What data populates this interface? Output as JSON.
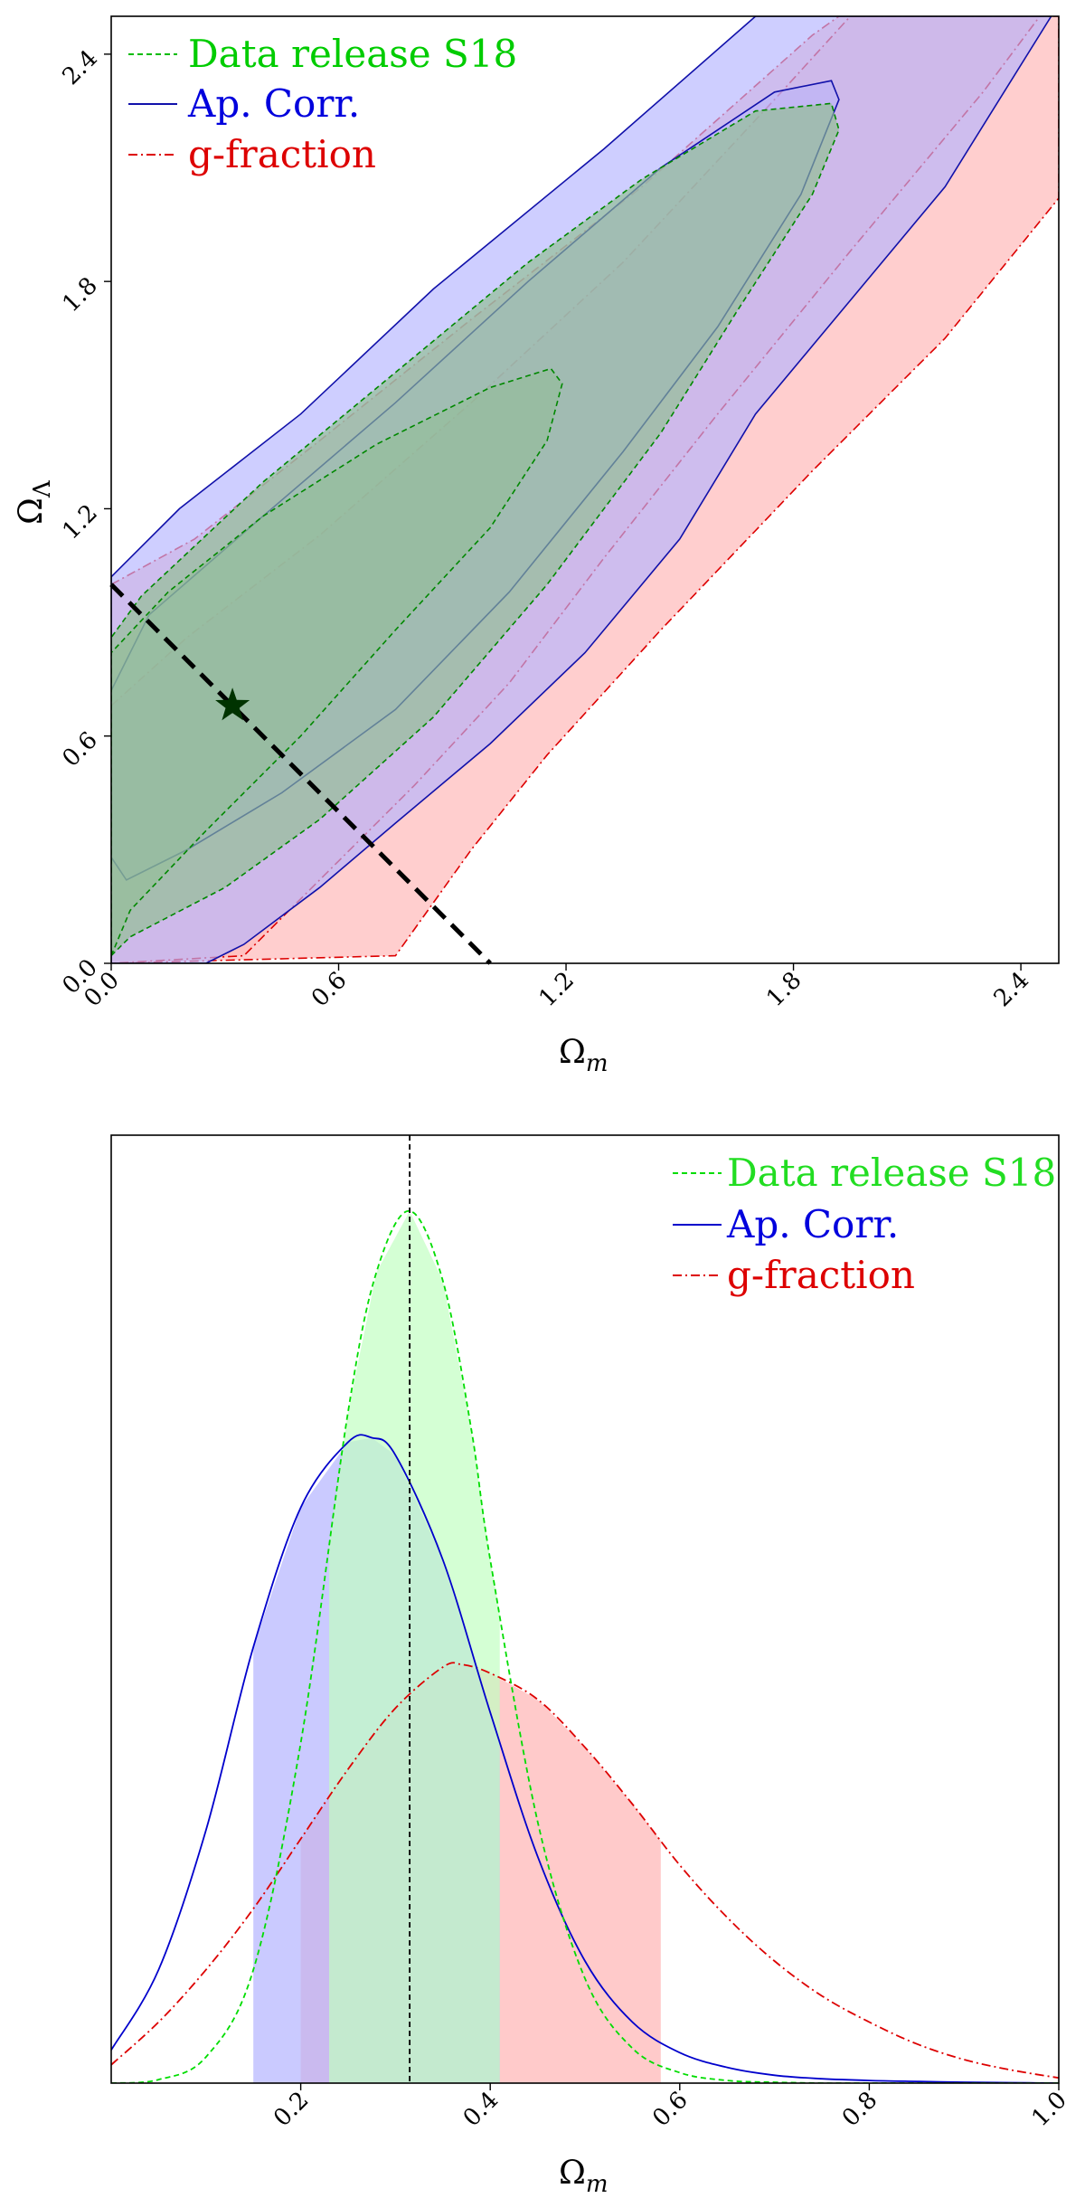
{
  "figure": "stacked cosmology constraint figure",
  "chart_data": [
    {
      "type": "contour",
      "xlabel_main": "Ω",
      "xlabel_sub": "m",
      "ylabel_main": "Ω",
      "ylabel_sub": "Λ",
      "xlim": [
        0.0,
        2.5
      ],
      "ylim": [
        0.0,
        2.5
      ],
      "xticks": [
        "0.0",
        "0.6",
        "1.2",
        "1.8",
        "2.4"
      ],
      "yticks": [
        "0.0",
        "0.6",
        "1.2",
        "1.8",
        "2.4"
      ],
      "xtick_values": [
        0.0,
        0.6,
        1.2,
        1.8,
        2.4
      ],
      "ytick_values": [
        0.0,
        0.6,
        1.2,
        1.8,
        2.4
      ],
      "legend_position": "top-left",
      "marker": {
        "symbol": "star",
        "x": 0.32,
        "y": 0.68,
        "color": "#003300"
      },
      "flat_universe_line": {
        "points": [
          [
            0.0,
            1.0
          ],
          [
            1.0,
            0.0
          ]
        ],
        "style": "dashed",
        "color": "#000000"
      },
      "series": [
        {
          "name": "g-fraction",
          "line": "dashdot",
          "color": "#dd0000",
          "fill": "#ffb3b3",
          "contours": {
            "outer": [
              [
                0.0,
                1.0
              ],
              [
                0.22,
                1.12
              ],
              [
                0.55,
                1.38
              ],
              [
                0.95,
                1.7
              ],
              [
                1.4,
                2.05
              ],
              [
                1.85,
                2.45
              ],
              [
                1.92,
                2.5
              ],
              [
                2.5,
                2.5
              ],
              [
                2.5,
                2.02
              ],
              [
                2.2,
                1.65
              ],
              [
                1.85,
                1.3
              ],
              [
                1.45,
                0.88
              ],
              [
                1.15,
                0.55
              ],
              [
                0.95,
                0.3
              ],
              [
                0.75,
                0.02
              ],
              [
                0.0,
                0.0
              ]
            ],
            "inner": [
              [
                0.0,
                0.68
              ],
              [
                0.2,
                0.86
              ],
              [
                0.55,
                1.13
              ],
              [
                0.95,
                1.48
              ],
              [
                1.35,
                1.85
              ],
              [
                1.75,
                2.28
              ],
              [
                1.95,
                2.5
              ],
              [
                2.45,
                2.5
              ],
              [
                2.3,
                2.3
              ],
              [
                1.95,
                1.88
              ],
              [
                1.6,
                1.45
              ],
              [
                1.3,
                1.07
              ],
              [
                1.05,
                0.74
              ],
              [
                0.8,
                0.47
              ],
              [
                0.6,
                0.27
              ],
              [
                0.45,
                0.12
              ],
              [
                0.35,
                0.02
              ],
              [
                0.0,
                0.0
              ]
            ]
          }
        },
        {
          "name": "Ap. Corr.",
          "line": "solid",
          "color": "#1111aa",
          "fill": "#b3b3ff",
          "contours": {
            "outer": [
              [
                0.0,
                1.02
              ],
              [
                0.18,
                1.2
              ],
              [
                0.5,
                1.45
              ],
              [
                0.85,
                1.78
              ],
              [
                1.3,
                2.15
              ],
              [
                1.7,
                2.5
              ],
              [
                2.48,
                2.5
              ],
              [
                2.2,
                2.05
              ],
              [
                1.95,
                1.75
              ],
              [
                1.7,
                1.45
              ],
              [
                1.5,
                1.12
              ],
              [
                1.25,
                0.82
              ],
              [
                1.0,
                0.58
              ],
              [
                0.75,
                0.37
              ],
              [
                0.55,
                0.2
              ],
              [
                0.35,
                0.05
              ],
              [
                0.25,
                0.0
              ],
              [
                0.0,
                0.0
              ]
            ],
            "inner": [
              [
                0.0,
                0.28
              ],
              [
                0.04,
                0.22
              ],
              [
                0.2,
                0.3
              ],
              [
                0.45,
                0.45
              ],
              [
                0.75,
                0.67
              ],
              [
                1.05,
                0.98
              ],
              [
                1.35,
                1.35
              ],
              [
                1.6,
                1.68
              ],
              [
                1.82,
                2.03
              ],
              [
                1.92,
                2.28
              ],
              [
                1.9,
                2.33
              ],
              [
                1.75,
                2.3
              ],
              [
                1.45,
                2.1
              ],
              [
                1.1,
                1.8
              ],
              [
                0.75,
                1.48
              ],
              [
                0.4,
                1.18
              ],
              [
                0.1,
                0.92
              ],
              [
                0.0,
                0.72
              ]
            ]
          }
        },
        {
          "name": "Data release S18",
          "line": "dashed",
          "color": "#008800",
          "fill": "#8fbf8f",
          "contours": {
            "outer": [
              [
                0.0,
                0.02
              ],
              [
                0.05,
                0.07
              ],
              [
                0.3,
                0.2
              ],
              [
                0.55,
                0.38
              ],
              [
                0.85,
                0.65
              ],
              [
                1.15,
                1.0
              ],
              [
                1.45,
                1.4
              ],
              [
                1.65,
                1.72
              ],
              [
                1.85,
                2.03
              ],
              [
                1.92,
                2.2
              ],
              [
                1.9,
                2.27
              ],
              [
                1.7,
                2.25
              ],
              [
                1.4,
                2.07
              ],
              [
                1.1,
                1.85
              ],
              [
                0.75,
                1.56
              ],
              [
                0.4,
                1.27
              ],
              [
                0.08,
                0.97
              ],
              [
                0.0,
                0.86
              ]
            ],
            "inner": [
              [
                0.0,
                0.02
              ],
              [
                0.05,
                0.14
              ],
              [
                0.25,
                0.35
              ],
              [
                0.5,
                0.6
              ],
              [
                0.75,
                0.88
              ],
              [
                1.0,
                1.15
              ],
              [
                1.15,
                1.38
              ],
              [
                1.19,
                1.53
              ],
              [
                1.16,
                1.57
              ],
              [
                1.0,
                1.52
              ],
              [
                0.7,
                1.37
              ],
              [
                0.4,
                1.18
              ],
              [
                0.15,
                0.98
              ],
              [
                0.0,
                0.82
              ]
            ]
          }
        }
      ]
    },
    {
      "type": "line",
      "xlabel_main": "Ω",
      "xlabel_sub": "m",
      "xlim": [
        0.0,
        1.0
      ],
      "ylim": [
        0.0,
        1.0
      ],
      "xticks": [
        "0.2",
        "0.4",
        "0.6",
        "0.8",
        "1.0"
      ],
      "xtick_values": [
        0.2,
        0.4,
        0.6,
        0.8,
        1.0
      ],
      "reference_line": {
        "x": 0.315,
        "style": "dashed",
        "color": "#000000"
      },
      "legend_position": "top-right",
      "series": [
        {
          "name": "g-fraction",
          "line": "dashdot",
          "color": "#dd0000",
          "fill": "#ffb3b3",
          "interval": [
            0.2,
            0.58
          ],
          "x": [
            0.0,
            0.05,
            0.1,
            0.15,
            0.2,
            0.25,
            0.3,
            0.35,
            0.37,
            0.4,
            0.45,
            0.5,
            0.55,
            0.6,
            0.65,
            0.7,
            0.75,
            0.8,
            0.85,
            0.9,
            0.95,
            1.0
          ],
          "y": [
            0.021,
            0.07,
            0.13,
            0.2,
            0.28,
            0.36,
            0.43,
            0.477,
            0.48,
            0.47,
            0.44,
            0.385,
            0.32,
            0.25,
            0.19,
            0.14,
            0.1,
            0.07,
            0.045,
            0.027,
            0.015,
            0.006
          ]
        },
        {
          "name": "Ap. Corr.",
          "line": "solid",
          "color": "#0000cc",
          "fill": "#b3b3ff",
          "interval": [
            0.15,
            0.41
          ],
          "x": [
            0.0,
            0.05,
            0.1,
            0.15,
            0.2,
            0.25,
            0.275,
            0.3,
            0.35,
            0.4,
            0.45,
            0.5,
            0.55,
            0.6,
            0.65,
            0.7,
            0.75,
            0.8,
            0.85,
            0.9,
            0.95,
            1.0
          ],
          "y": [
            0.038,
            0.13,
            0.29,
            0.5,
            0.66,
            0.735,
            0.74,
            0.72,
            0.6,
            0.425,
            0.26,
            0.14,
            0.07,
            0.035,
            0.018,
            0.009,
            0.005,
            0.003,
            0.002,
            0.001,
            0.0005,
            0.0
          ]
        },
        {
          "name": "Data release S18",
          "line": "dashed",
          "color": "#00dd00",
          "fill": "#c2ffc2",
          "interval": [
            0.23,
            0.41
          ],
          "x": [
            0.0,
            0.05,
            0.1,
            0.15,
            0.2,
            0.25,
            0.28,
            0.315,
            0.35,
            0.38,
            0.4,
            0.45,
            0.5,
            0.55,
            0.6,
            0.65,
            0.7,
            0.75,
            0.8,
            1.0
          ],
          "y": [
            0.0,
            0.004,
            0.03,
            0.13,
            0.39,
            0.77,
            0.93,
            1.0,
            0.92,
            0.75,
            0.6,
            0.3,
            0.12,
            0.04,
            0.012,
            0.003,
            0.001,
            0.0,
            0.0,
            0.0
          ]
        }
      ]
    }
  ]
}
